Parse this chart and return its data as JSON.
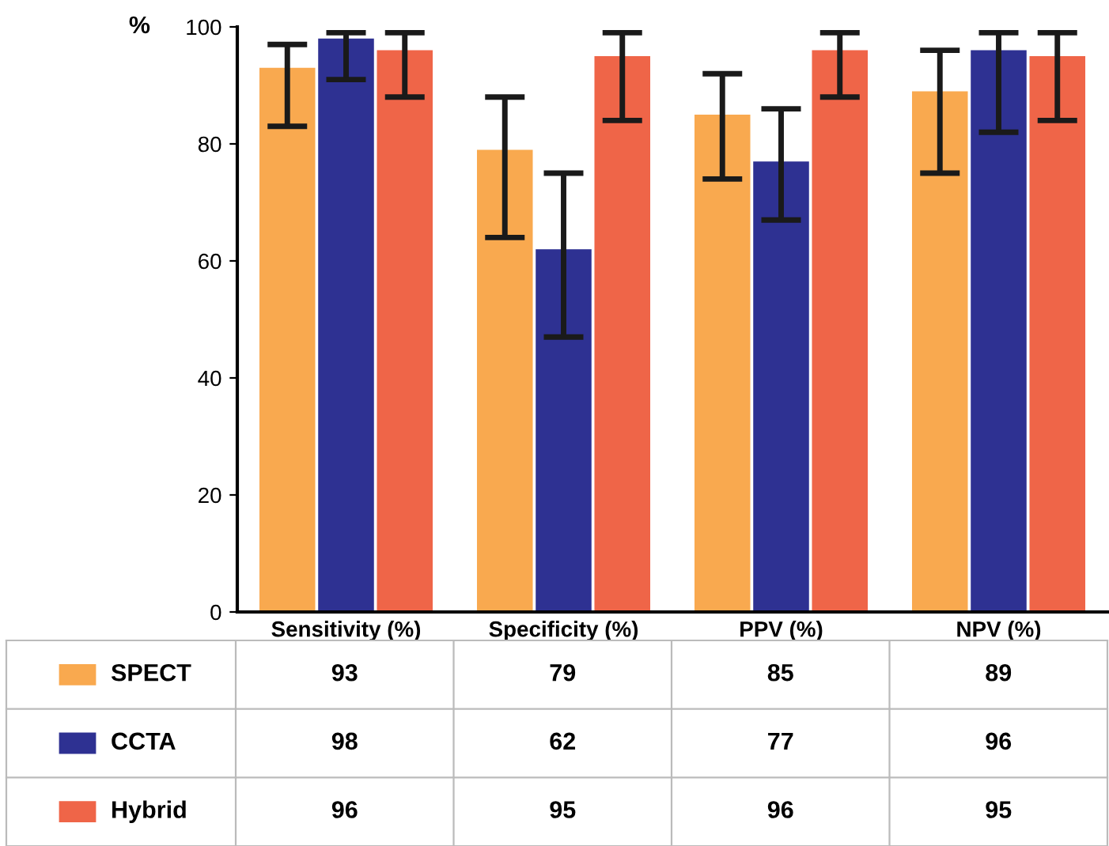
{
  "chart_data": {
    "type": "bar",
    "ylabel": "%",
    "categories": [
      "Sensitivity (%)",
      "Specificity (%)",
      "PPV (%)",
      "NPV (%)"
    ],
    "series": [
      {
        "name": "SPECT",
        "color": "#f9a94f",
        "values": [
          93,
          79,
          85,
          89
        ],
        "errors": [
          [
            83,
            97
          ],
          [
            64,
            88
          ],
          [
            74,
            92
          ],
          [
            75,
            96
          ]
        ]
      },
      {
        "name": "CCTA",
        "color": "#2e3192",
        "values": [
          98,
          62,
          77,
          96
        ],
        "errors": [
          [
            91,
            99
          ],
          [
            47,
            75
          ],
          [
            67,
            86
          ],
          [
            82,
            99
          ]
        ]
      },
      {
        "name": "Hybrid",
        "color": "#ef6548",
        "values": [
          96,
          95,
          96,
          95
        ],
        "errors": [
          [
            88,
            99
          ],
          [
            84,
            99
          ],
          [
            88,
            99
          ],
          [
            84,
            99
          ]
        ]
      }
    ],
    "ylim": [
      0,
      100
    ],
    "yticks": [
      0,
      20,
      40,
      60,
      80,
      100
    ],
    "grid": false,
    "data_labels": true,
    "legend": "bottom left"
  }
}
